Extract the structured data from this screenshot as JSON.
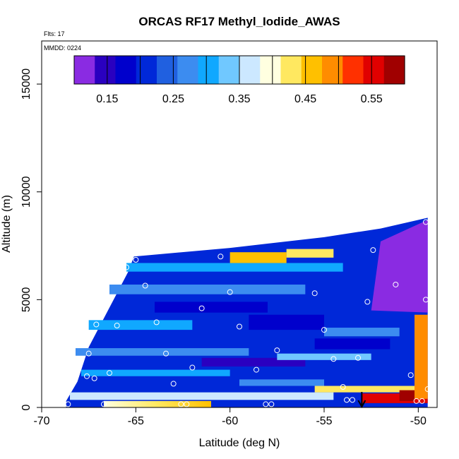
{
  "chart_data": {
    "type": "heatmap",
    "title": "ORCAS RF17 Methyl_Iodide_AWAS",
    "annotations": {
      "flights": "Flts: 17",
      "mmdd": "MMDD: 0224"
    },
    "xlabel": "Latitude (deg N)",
    "ylabel": "Altitude (m)",
    "xlim": [
      -70,
      -49
    ],
    "ylim": [
      0,
      17000
    ],
    "x_ticks": [
      -70,
      -65,
      -60,
      -55,
      -50
    ],
    "x_tick_labels": [
      "-70",
      "-65",
      "-60",
      "-55",
      "-50"
    ],
    "y_ticks": [
      0,
      5000,
      10000,
      15000
    ],
    "y_tick_labels": [
      "0",
      "5000",
      "10000",
      "15000"
    ],
    "colorbar": {
      "range": [
        0.1,
        0.6
      ],
      "ticks": [
        0.15,
        0.25,
        0.35,
        0.45,
        0.55
      ],
      "tick_labels": [
        "0.15",
        "0.25",
        "0.35",
        "0.45",
        "0.55"
      ],
      "colors": [
        "#8a2be2",
        "#2a00c0",
        "#0000cc",
        "#0028d8",
        "#2060e0",
        "#3c8cf0",
        "#10a8ff",
        "#70c8ff",
        "#cce8ff",
        "#ffffe0",
        "#ffe860",
        "#ffc000",
        "#ff8c00",
        "#ff3000",
        "#e00000",
        "#a00000"
      ]
    },
    "samples": [
      {
        "lat": -68.6,
        "alt": 150
      },
      {
        "lat": -67.6,
        "alt": 1450
      },
      {
        "lat": -67.2,
        "alt": 1350
      },
      {
        "lat": -67.5,
        "alt": 2500
      },
      {
        "lat": -67.1,
        "alt": 3850
      },
      {
        "lat": -66.0,
        "alt": 3800
      },
      {
        "lat": -66.4,
        "alt": 1600
      },
      {
        "lat": -66.7,
        "alt": 150
      },
      {
        "lat": -65.5,
        "alt": 6500
      },
      {
        "lat": -65.0,
        "alt": 6850
      },
      {
        "lat": -64.5,
        "alt": 5650
      },
      {
        "lat": -63.9,
        "alt": 3950
      },
      {
        "lat": -63.4,
        "alt": 2500
      },
      {
        "lat": -63.0,
        "alt": 1100
      },
      {
        "lat": -62.6,
        "alt": 150
      },
      {
        "lat": -62.3,
        "alt": 150
      },
      {
        "lat": -62.0,
        "alt": 1850
      },
      {
        "lat": -61.5,
        "alt": 4600
      },
      {
        "lat": -60.5,
        "alt": 7000
      },
      {
        "lat": -60.0,
        "alt": 5350
      },
      {
        "lat": -59.5,
        "alt": 3750
      },
      {
        "lat": -58.6,
        "alt": 1750
      },
      {
        "lat": -58.1,
        "alt": 150
      },
      {
        "lat": -57.8,
        "alt": 150
      },
      {
        "lat": -57.5,
        "alt": 2650
      },
      {
        "lat": -55.5,
        "alt": 5300
      },
      {
        "lat": -55.0,
        "alt": 3600
      },
      {
        "lat": -54.5,
        "alt": 2250
      },
      {
        "lat": -54.0,
        "alt": 950
      },
      {
        "lat": -53.8,
        "alt": 350
      },
      {
        "lat": -53.5,
        "alt": 350
      },
      {
        "lat": -53.2,
        "alt": 2300
      },
      {
        "lat": -52.7,
        "alt": 4900
      },
      {
        "lat": -52.4,
        "alt": 7300
      },
      {
        "lat": -51.2,
        "alt": 5700
      },
      {
        "lat": -50.4,
        "alt": 1500
      },
      {
        "lat": -50.1,
        "alt": 300
      },
      {
        "lat": -49.8,
        "alt": 300
      },
      {
        "lat": -49.6,
        "alt": 5000
      },
      {
        "lat": -49.6,
        "alt": 8600
      },
      {
        "lat": -49.5,
        "alt": 850
      }
    ],
    "arrow_marker_lat": -53,
    "grid": false
  }
}
